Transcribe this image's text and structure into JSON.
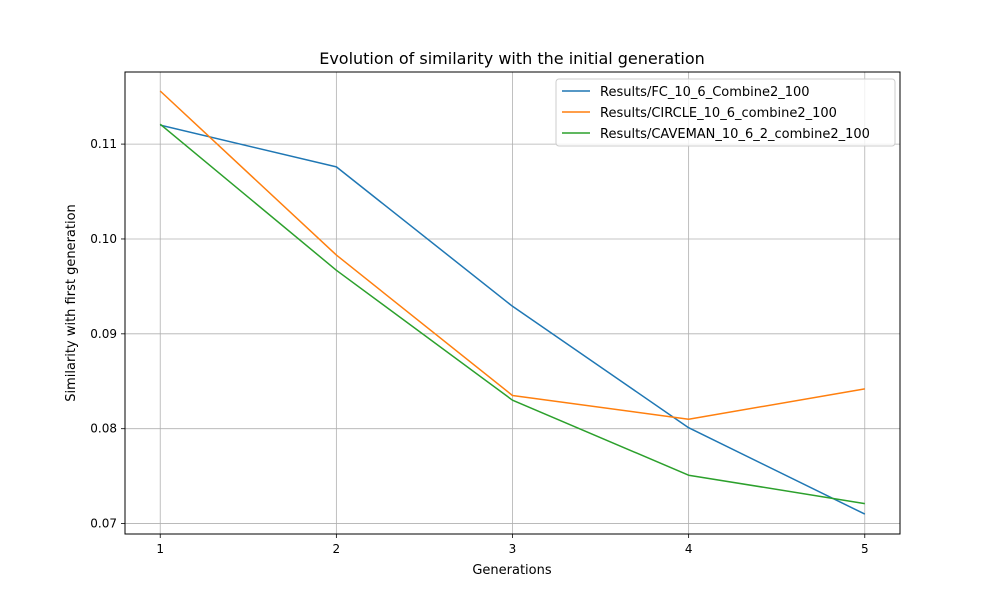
{
  "chart_data": {
    "type": "line",
    "title": "Evolution of similarity with the initial generation",
    "xlabel": "Generations",
    "ylabel": "Similarity with first generation",
    "x": [
      1,
      2,
      3,
      4,
      5
    ],
    "xticks": [
      "1",
      "2",
      "3",
      "4",
      "5"
    ],
    "yticks": [
      0.07,
      0.08,
      0.09,
      0.1,
      0.11
    ],
    "ytick_labels": [
      "0.07",
      "0.08",
      "0.09",
      "0.10",
      "0.11"
    ],
    "xlim": [
      0.8,
      5.2
    ],
    "ylim": [
      0.0689,
      0.1176
    ],
    "grid": true,
    "legend_position": "top-right",
    "series": [
      {
        "name": "Results/FC_10_6_Combine2_100",
        "color": "#1f77b4",
        "values": [
          0.112,
          0.1076,
          0.0929,
          0.0801,
          0.071
        ]
      },
      {
        "name": "Results/CIRCLE_10_6_combine2_100",
        "color": "#ff7f0e",
        "values": [
          0.1156,
          0.0983,
          0.0835,
          0.081,
          0.0842
        ]
      },
      {
        "name": "Results/CAVEMAN_10_6_2_combine2_100",
        "color": "#2ca02c",
        "values": [
          0.1121,
          0.0967,
          0.083,
          0.0751,
          0.0721
        ]
      }
    ]
  }
}
